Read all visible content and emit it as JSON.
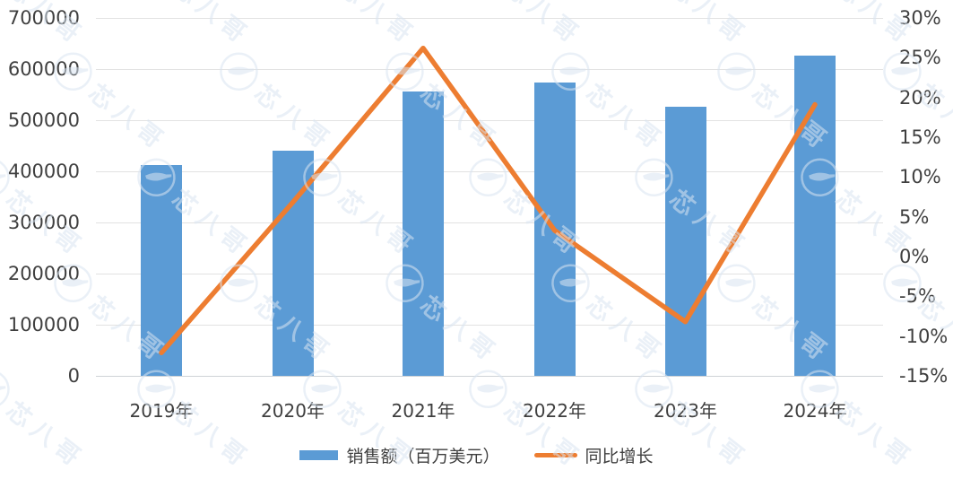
{
  "chart_data": {
    "type": "combo_bar_line",
    "title": "",
    "categories": [
      "2019年",
      "2020年",
      "2021年",
      "2022年",
      "2023年",
      "2024年"
    ],
    "series": [
      {
        "name": "销售额（百万美元）",
        "type": "bar",
        "axis": "left",
        "values": [
          412000,
          440000,
          556000,
          574000,
          527000,
          627000
        ]
      },
      {
        "name": "同比增长",
        "type": "line",
        "axis": "right",
        "unit": "%",
        "values": [
          -12.1,
          6.8,
          26.2,
          3.3,
          -8.2,
          19.1
        ]
      }
    ],
    "left_axis": {
      "min": 0,
      "max": 700000,
      "step": 100000,
      "ticks": [
        "700000",
        "600000",
        "500000",
        "400000",
        "300000",
        "200000",
        "100000",
        "0"
      ]
    },
    "right_axis": {
      "min": -15,
      "max": 30,
      "step": 5,
      "ticks": [
        "30%",
        "25%",
        "20%",
        "15%",
        "10%",
        "5%",
        "0%",
        "-5%",
        "-10%",
        "-15%"
      ]
    },
    "grid": "horizontal",
    "legend_position": "bottom"
  },
  "legend": {
    "bar_label": "销售额（百万美元）",
    "line_label": "同比增长"
  },
  "watermark": {
    "text": "芯八哥"
  },
  "colors": {
    "bar": "#5B9BD5",
    "line": "#ED7D31",
    "grid": "#e2e2e2",
    "text": "#3f3f3f",
    "watermark": "#d9e5f2",
    "background": "#ffffff"
  }
}
